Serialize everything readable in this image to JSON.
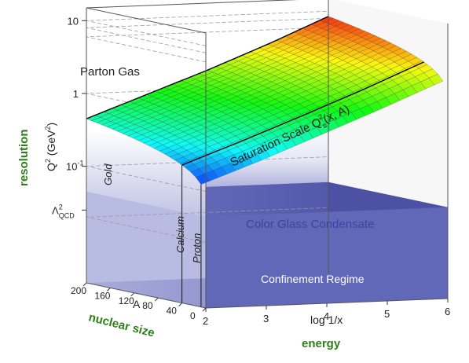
{
  "chart_data": {
    "type": "surface3d",
    "title": "",
    "axes": {
      "energy": {
        "label": "log 1/x",
        "range": [
          2,
          6
        ],
        "ticks": [
          "2",
          "3",
          "4",
          "5",
          "6"
        ]
      },
      "nuclear_size": {
        "label": "A",
        "range": [
          0,
          200
        ],
        "ticks": [
          "200",
          "160",
          "120",
          "80",
          "40",
          "0"
        ]
      },
      "resolution": {
        "label_text": "Q",
        "label_sup": "2",
        "label_unit_open": " (GeV",
        "label_unit_sup": "2",
        "label_unit_close": ")",
        "scale": "log",
        "ticks": [
          "10",
          "1",
          "10",
          "Λ"
        ],
        "tick_10m1_base": "10",
        "tick_10m1_exp": "-1",
        "tick_lqcd_base": "Λ",
        "tick_lqcd_sup": "2",
        "tick_lqcd_sub": "QCD"
      }
    },
    "saturation_scale": {
      "log1x": [
        2,
        3,
        4,
        5,
        6
      ],
      "Qs2_gold": [
        0.45,
        0.9,
        1.8,
        3.8,
        8.5
      ],
      "Qs2_proton": [
        0.06,
        0.12,
        0.26,
        0.55,
        1.2
      ]
    },
    "regions": {
      "parton_gas": "Parton Gas",
      "cgc": "Color Glass Condensate",
      "confinement": "Confinement Regime"
    },
    "nuclei": {
      "gold": "Gold",
      "calcium": "Calcium",
      "proton": "Proton"
    },
    "surface_label": {
      "text": "Saturation Scale Q",
      "sup": "2",
      "sub": "s",
      "suffix": "(x, A)"
    },
    "outer_labels": {
      "resolution": "resolution",
      "nuclear_size": "nuclear size",
      "energy": "energy"
    },
    "colors": {
      "confinement": "#5a5fb0",
      "surface_low": "#7a1fd0",
      "surface_high": "#e81a10",
      "label_green": "#2e7d1a"
    }
  }
}
